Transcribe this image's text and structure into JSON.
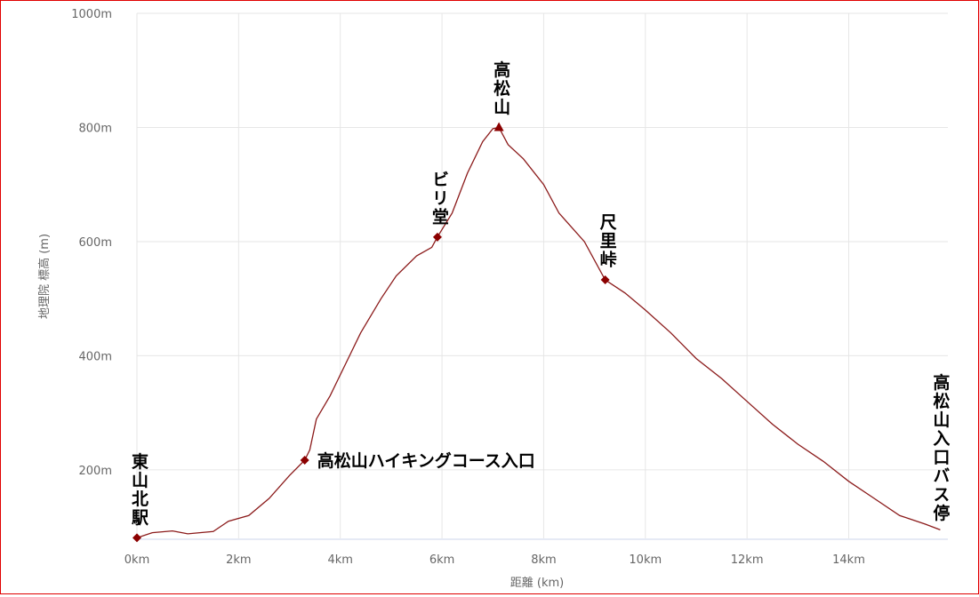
{
  "chart_data": {
    "type": "line",
    "x_label": "距離 (km)",
    "y_label": "地理院 標高 (m)",
    "x": [
      0,
      0.3,
      0.7,
      1.0,
      1.5,
      1.8,
      2.2,
      2.6,
      3.0,
      3.3,
      3.4,
      3.53,
      3.8,
      4.1,
      4.4,
      4.8,
      5.1,
      5.5,
      5.8,
      5.91,
      6.2,
      6.5,
      6.8,
      7.0,
      7.12,
      7.3,
      7.6,
      8.0,
      8.3,
      8.8,
      9.21,
      9.6,
      10.0,
      10.5,
      11.0,
      11.5,
      12.0,
      12.5,
      13.0,
      13.5,
      14.0,
      14.5,
      15.0,
      15.5,
      15.8
    ],
    "values": [
      81,
      90,
      93,
      88,
      92,
      110,
      120,
      150,
      190,
      217,
      235,
      289,
      330,
      385,
      440,
      500,
      540,
      575,
      590,
      608,
      650,
      720,
      775,
      798,
      800,
      770,
      745,
      700,
      650,
      600,
      533,
      510,
      480,
      440,
      395,
      360,
      320,
      280,
      245,
      215,
      180,
      150,
      120,
      105,
      95
    ],
    "color": "#8b1a1a",
    "xlim": [
      0,
      15.95
    ],
    "ylim": [
      80,
      1000
    ],
    "xticks": [
      {
        "value": 0,
        "label": "0km"
      },
      {
        "value": 2,
        "label": "2km"
      },
      {
        "value": 4,
        "label": "4km"
      },
      {
        "value": 6,
        "label": "6km"
      },
      {
        "value": 8,
        "label": "8km"
      },
      {
        "value": 10,
        "label": "10km"
      },
      {
        "value": 12,
        "label": "12km"
      },
      {
        "value": 14,
        "label": "14km"
      }
    ],
    "yticks": [
      {
        "value": 200,
        "label": "200m"
      },
      {
        "value": 400,
        "label": "400m"
      },
      {
        "value": 600,
        "label": "600m"
      },
      {
        "value": 800,
        "label": "800m"
      },
      {
        "value": 1000,
        "label": "1000m"
      }
    ],
    "grid": true,
    "marker_color": "#8b0000",
    "annotations": [
      {
        "label": "東山北駅",
        "x": 0,
        "y": 81,
        "orientation": "vertical",
        "marker": "diamond"
      },
      {
        "label": "高松山ハイキングコース入口",
        "x": 3.3,
        "y": 217,
        "orientation": "horizontal",
        "marker": "diamond"
      },
      {
        "label": "ビリ堂",
        "x": 5.91,
        "y": 608,
        "orientation": "vertical",
        "marker": "diamond"
      },
      {
        "label": "高松山",
        "x": 7.12,
        "y": 800,
        "orientation": "vertical",
        "marker": "triangle"
      },
      {
        "label": "尺里峠",
        "x": 9.21,
        "y": 533,
        "orientation": "vertical",
        "marker": "diamond"
      },
      {
        "label": "高松山入口バス停",
        "x": 15.8,
        "y": 95,
        "orientation": "vertical",
        "marker": "none"
      }
    ]
  }
}
